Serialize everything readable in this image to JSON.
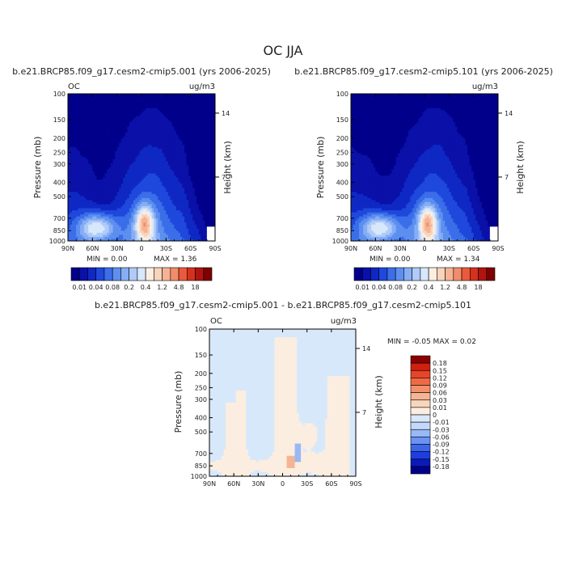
{
  "figure": {
    "title": "OC JJA"
  },
  "colors": {
    "abs_levels": [
      "#00008b",
      "#0a10a8",
      "#0f28c4",
      "#1f48dc",
      "#3b6ee8",
      "#5d8ff0",
      "#86aef5",
      "#b0cbf8",
      "#d8e8fb",
      "#fbeee0",
      "#f8d3bd",
      "#f6b394",
      "#f28c6a",
      "#ea5a3c",
      "#d5321e",
      "#b01410",
      "#7e0000"
    ],
    "diff_levels": [
      "#00008b",
      "#0a1ab8",
      "#1e3ee0",
      "#3b66ec",
      "#6a93f2",
      "#98b8f6",
      "#c4d9f9",
      "#d8e8fb",
      "#fbeee0",
      "#f8d6be",
      "#f5b594",
      "#f29069",
      "#ee6a45",
      "#e8442a",
      "#d0200f",
      "#8b0000"
    ]
  },
  "chart_data": [
    {
      "type": "heatmap",
      "panel": "top-left",
      "title": "b.e21.BRCP85.f09_g17.cesm2-cmip5.001 (yrs 2006-2025)",
      "left_label": "OC",
      "right_label": "ug/m3",
      "xlabel": "",
      "ylabel": "Pressure (mb)",
      "y2label": "Height (km)",
      "x_ticks": [
        "90N",
        "60N",
        "30N",
        "0",
        "30S",
        "60S",
        "90S"
      ],
      "y_ticks": [
        "100",
        "150",
        "200",
        "250",
        "300",
        "400",
        "500",
        "700",
        "850",
        "1000"
      ],
      "y2_ticks": [
        "14",
        "7"
      ],
      "min_text": "MIN =    0.00",
      "max_text": "MAX =    1.36",
      "min": 0.0,
      "max": 1.36
    },
    {
      "type": "heatmap",
      "panel": "top-right",
      "title": "b.e21.BRCP85.f09_g17.cesm2-cmip5.101 (yrs 2006-2025)",
      "left_label": "",
      "right_label": "ug/m3",
      "xlabel": "",
      "ylabel": "Pressure (mb)",
      "y2label": "Height (km)",
      "x_ticks": [
        "90N",
        "60N",
        "30N",
        "0",
        "30S",
        "60S",
        "90S"
      ],
      "y_ticks": [
        "100",
        "150",
        "200",
        "250",
        "300",
        "400",
        "500",
        "700",
        "850",
        "1000"
      ],
      "y2_ticks": [
        "14",
        "7"
      ],
      "min_text": "MIN =    0.00",
      "max_text": "MAX =    1.34",
      "min": 0.0,
      "max": 1.34
    },
    {
      "type": "heatmap",
      "panel": "bottom",
      "title": "b.e21.BRCP85.f09_g17.cesm2-cmip5.001 - b.e21.BRCP85.f09_g17.cesm2-cmip5.101",
      "left_label": "OC",
      "right_label": "ug/m3",
      "xlabel": "",
      "ylabel": "Pressure (mb)",
      "y2label": "Height (km)",
      "x_ticks": [
        "90N",
        "60N",
        "30N",
        "0",
        "30S",
        "60S",
        "90S"
      ],
      "y_ticks": [
        "100",
        "150",
        "200",
        "250",
        "300",
        "400",
        "500",
        "700",
        "850",
        "1000"
      ],
      "y2_ticks": [
        "14",
        "7"
      ],
      "minmax_text": "MIN =  -0.05   MAX =    0.02",
      "min": -0.05,
      "max": 0.02
    }
  ],
  "colorbars": {
    "abs": {
      "labels": [
        "0.01",
        "0.04",
        "0.08",
        "0.2",
        "0.4",
        "1.2",
        "4.8",
        "18"
      ]
    },
    "diff": {
      "labels": [
        "0.18",
        "0.15",
        "0.12",
        "0.09",
        "0.06",
        "0.03",
        "0.01",
        "0",
        "-0.01",
        "-0.03",
        "-0.06",
        "-0.09",
        "-0.12",
        "-0.15",
        "-0.18"
      ]
    }
  }
}
